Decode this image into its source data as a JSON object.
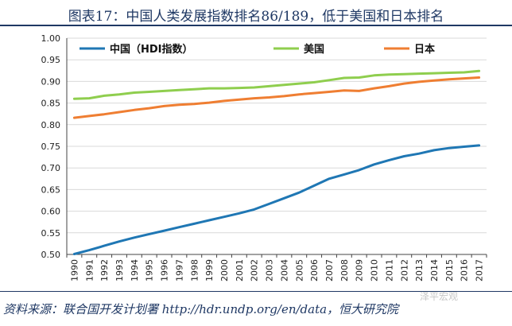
{
  "header": {
    "title": "图表17：中国人类发展指数排名86/189，低于美国和日本排名"
  },
  "footer": {
    "source": "资料来源：联合国开发计划署 http://hdr.undp.org/en/data，恒大研究院",
    "watermark": "泽平宏观"
  },
  "chart_data": {
    "type": "line",
    "x": [
      "1990",
      "1991",
      "1992",
      "1993",
      "1994",
      "1995",
      "1996",
      "1997",
      "1998",
      "1999",
      "2000",
      "2001",
      "2002",
      "2003",
      "2004",
      "2005",
      "2006",
      "2007",
      "2008",
      "2009",
      "2010",
      "2011",
      "2012",
      "2013",
      "2014",
      "2015",
      "2016",
      "2017"
    ],
    "ylim": [
      0.5,
      1.0
    ],
    "yticks": [
      "0.50",
      "0.55",
      "0.60",
      "0.65",
      "0.70",
      "0.75",
      "0.80",
      "0.85",
      "0.90",
      "0.95",
      "1.00"
    ],
    "grid": true,
    "legend_position": "top",
    "series": [
      {
        "name": "中国（HDI指数）",
        "color": "#1f77b4",
        "values": [
          0.501,
          0.51,
          0.52,
          0.53,
          0.539,
          0.547,
          0.555,
          0.563,
          0.571,
          0.579,
          0.587,
          0.595,
          0.604,
          0.617,
          0.63,
          0.643,
          0.659,
          0.675,
          0.685,
          0.695,
          0.708,
          0.718,
          0.727,
          0.733,
          0.741,
          0.746,
          0.749,
          0.752
        ]
      },
      {
        "name": "美国",
        "color": "#8fce4e",
        "values": [
          0.86,
          0.861,
          0.867,
          0.87,
          0.874,
          0.876,
          0.878,
          0.88,
          0.882,
          0.884,
          0.884,
          0.885,
          0.886,
          0.889,
          0.892,
          0.895,
          0.898,
          0.903,
          0.908,
          0.909,
          0.914,
          0.916,
          0.917,
          0.918,
          0.919,
          0.92,
          0.921,
          0.924
        ]
      },
      {
        "name": "日本",
        "color": "#ef7e32",
        "values": [
          0.816,
          0.82,
          0.824,
          0.829,
          0.834,
          0.838,
          0.843,
          0.846,
          0.848,
          0.851,
          0.855,
          0.858,
          0.861,
          0.863,
          0.866,
          0.87,
          0.873,
          0.876,
          0.879,
          0.878,
          0.884,
          0.889,
          0.895,
          0.899,
          0.902,
          0.905,
          0.907,
          0.909
        ]
      }
    ]
  }
}
